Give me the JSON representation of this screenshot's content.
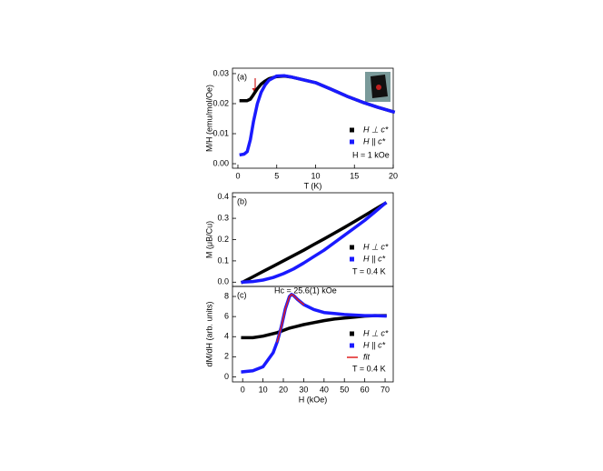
{
  "chart_data": [
    {
      "type": "line",
      "panel_label": "(a)",
      "x_label": "T (K)",
      "y_label": "M/H (emu/mol/Oe)",
      "xlim": [
        -0.7,
        20
      ],
      "ylim": [
        -0.0015,
        0.0318
      ],
      "xticks": [
        0,
        5,
        10,
        15,
        20
      ],
      "yticks": [
        {
          "value": 0,
          "label": "0.00"
        },
        0.01,
        0.02,
        0.03
      ],
      "legend": "lower right",
      "x": [
        0.4,
        0.8,
        1.2,
        1.6,
        2,
        2.5,
        3,
        3.5,
        4,
        5,
        6,
        7,
        8,
        10,
        12,
        14,
        16,
        18,
        20
      ],
      "series": [
        {
          "name": "H ⊥ c*",
          "color": "#000000",
          "values": [
            0.021,
            0.021,
            0.021,
            0.0215,
            0.023,
            0.025,
            0.0265,
            0.0275,
            0.0283,
            0.029,
            0.0292,
            0.0288,
            0.0282,
            0.027,
            0.0248,
            0.0225,
            0.0205,
            0.0188,
            0.0173
          ]
        },
        {
          "name": "H || c*",
          "color": "#1a1aff",
          "values": [
            0.003,
            0.0032,
            0.004,
            0.008,
            0.014,
            0.02,
            0.0238,
            0.0262,
            0.0278,
            0.0292,
            0.0293,
            0.0288,
            0.0282,
            0.027,
            0.0248,
            0.0225,
            0.0205,
            0.0188,
            0.0173
          ]
        }
      ],
      "annotations": [
        "H = 1 kOe"
      ]
    },
    {
      "type": "line",
      "panel_label": "(b)",
      "y_label": "M (μB/Cu)",
      "xlim": [
        -5,
        74
      ],
      "ylim": [
        -0.02,
        0.42
      ],
      "yticks": [
        {
          "value": 0,
          "label": "0.0"
        },
        0.1,
        0.2,
        0.3,
        0.4
      ],
      "legend": "lower right",
      "x": [
        0,
        5,
        10,
        15,
        20,
        25,
        30,
        35,
        40,
        45,
        50,
        55,
        60,
        65,
        70
      ],
      "series": [
        {
          "name": "H ⊥ c*",
          "color": "#000000",
          "values": [
            0,
            0.025,
            0.05,
            0.075,
            0.1,
            0.125,
            0.15,
            0.177,
            0.203,
            0.23,
            0.257,
            0.285,
            0.313,
            0.342,
            0.37
          ]
        },
        {
          "name": "H || c*",
          "color": "#1a1aff",
          "values": [
            0,
            0.003,
            0.01,
            0.022,
            0.04,
            0.062,
            0.09,
            0.12,
            0.15,
            0.185,
            0.22,
            0.255,
            0.29,
            0.33,
            0.37
          ]
        }
      ],
      "annotations": [
        "T = 0.4 K"
      ]
    },
    {
      "type": "line",
      "panel_label": "(c)",
      "x_label": "H (kOe)",
      "y_label": "dM/dH (arb. units)",
      "xlim": [
        -5,
        74
      ],
      "ylim": [
        -0.5,
        9
      ],
      "xticks": [
        0,
        10,
        20,
        30,
        40,
        50,
        60,
        70
      ],
      "yticks": [
        0,
        2,
        4,
        6,
        8
      ],
      "legend": "lower right",
      "x": [
        0,
        5,
        10,
        15,
        17,
        19,
        21,
        23,
        24,
        25,
        27,
        30,
        35,
        40,
        45,
        50,
        55,
        60,
        65,
        70
      ],
      "series": [
        {
          "name": "H ⊥ c*",
          "color": "#000000",
          "values": [
            3.9,
            3.9,
            4.05,
            4.3,
            4.4,
            4.55,
            4.7,
            4.85,
            4.9,
            4.95,
            5.05,
            5.2,
            5.4,
            5.6,
            5.75,
            5.85,
            5.95,
            6.05,
            6.1,
            6.1
          ]
        },
        {
          "name": "H || c*",
          "color": "#1a1aff",
          "values": [
            0.5,
            0.6,
            1.0,
            2.4,
            3.5,
            5.0,
            6.8,
            8.0,
            8.2,
            8.1,
            7.7,
            7.2,
            6.7,
            6.4,
            6.3,
            6.2,
            6.15,
            6.1,
            6.1,
            6.05
          ]
        },
        {
          "name": "fit",
          "color": "#e02020",
          "values": [
            null,
            null,
            null,
            null,
            3.5,
            5.0,
            6.8,
            8.0,
            8.2,
            8.1,
            7.7,
            7.2,
            null,
            null,
            null,
            null,
            null,
            null,
            null,
            null
          ]
        }
      ],
      "annotations": [
        "Hc = 25.6(1) kOe",
        "T = 0.4 K"
      ]
    }
  ]
}
